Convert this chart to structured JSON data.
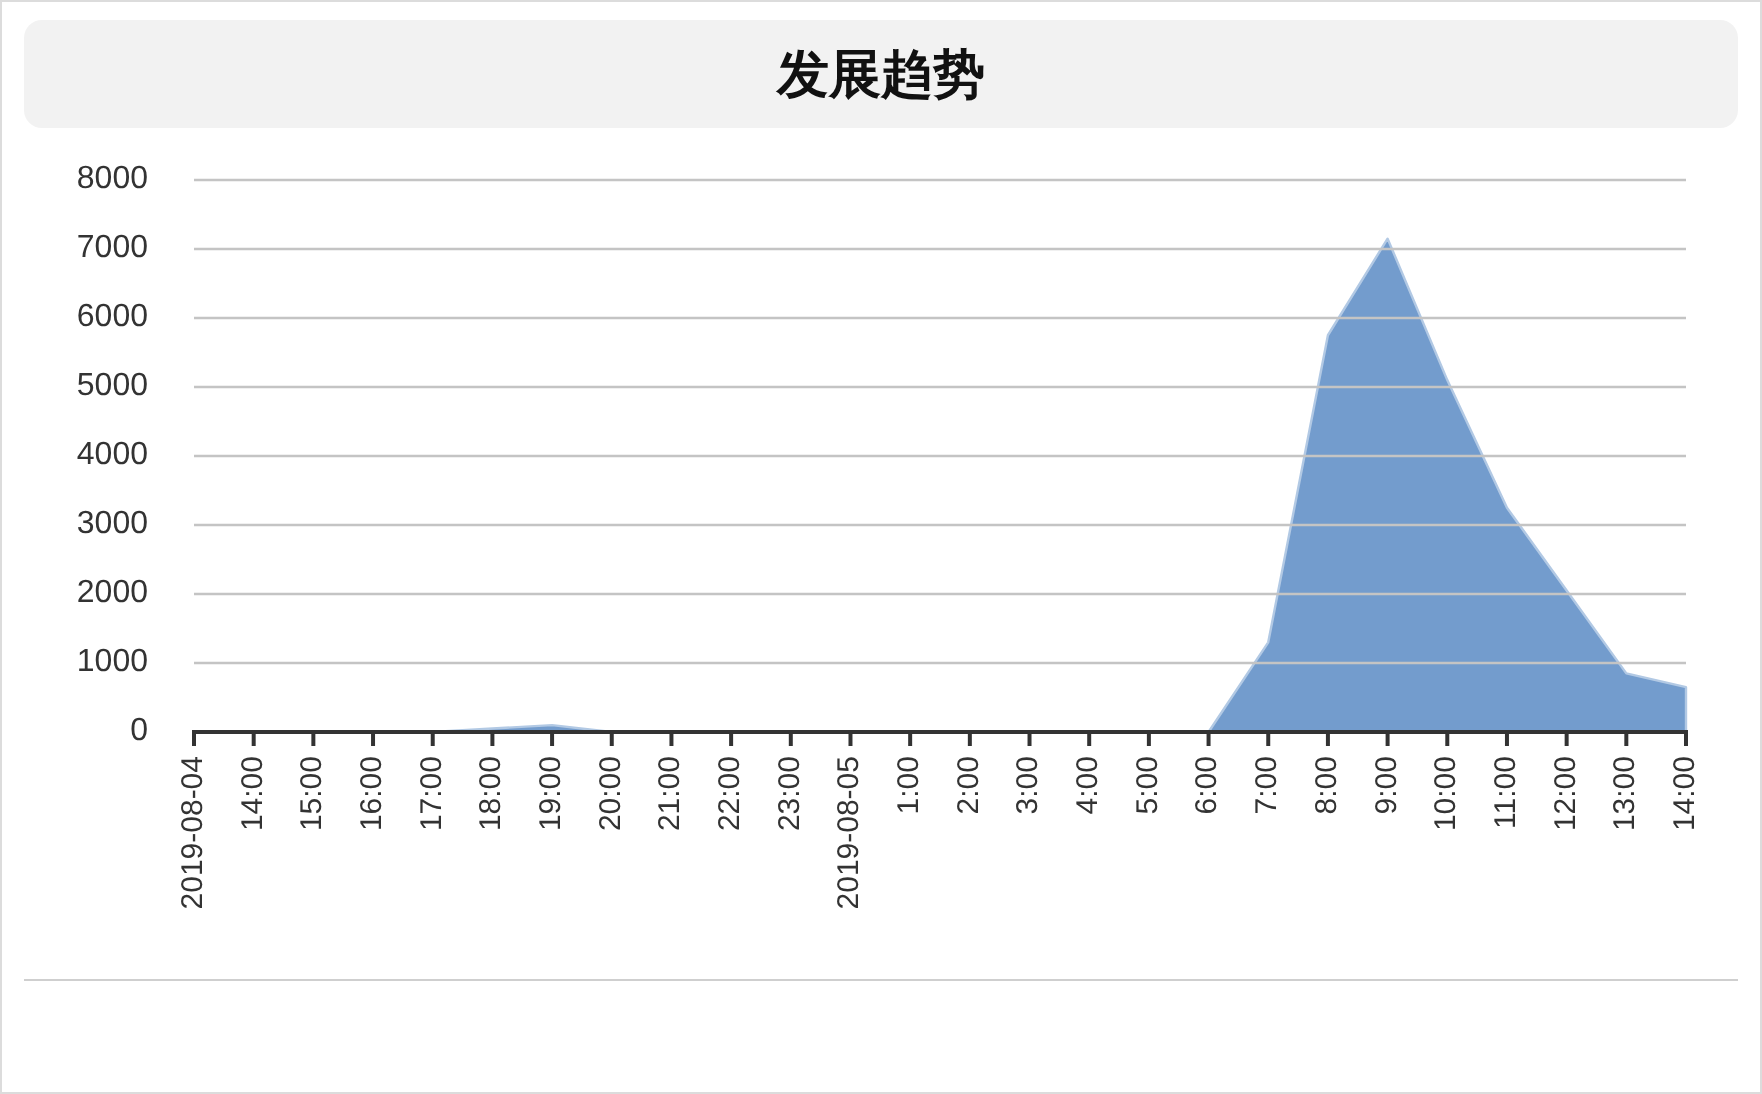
{
  "chart_data": {
    "type": "area",
    "title": "发展趋势",
    "categories": [
      "2019-08-04",
      "14:00",
      "15:00",
      "16:00",
      "17:00",
      "18:00",
      "19:00",
      "20:00",
      "21:00",
      "22:00",
      "23:00",
      "2019-08-05",
      "1:00",
      "2:00",
      "3:00",
      "4:00",
      "5:00",
      "6:00",
      "7:00",
      "8:00",
      "9:00",
      "10:00",
      "11:00",
      "12:00",
      "13:00",
      "14:00"
    ],
    "values": [
      0,
      0,
      0,
      0,
      0,
      50,
      100,
      0,
      0,
      0,
      0,
      0,
      0,
      0,
      0,
      0,
      0,
      0,
      1300,
      5750,
      7150,
      5100,
      3250,
      2050,
      850,
      650
    ],
    "color": "#739ccd",
    "ylim": [
      0,
      8000
    ],
    "yticks": [
      0,
      1000,
      2000,
      3000,
      4000,
      5000,
      6000,
      7000,
      8000
    ],
    "grid": "y"
  }
}
